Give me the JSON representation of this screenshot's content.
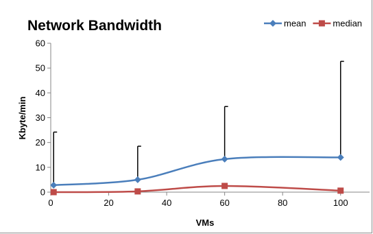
{
  "chart_data": {
    "type": "line",
    "title": "Network Bandwidth",
    "xlabel": "VMs",
    "ylabel": "Kbyte/min",
    "xlim": [
      0,
      110
    ],
    "ylim": [
      0,
      60
    ],
    "x_ticks": [
      0,
      20,
      40,
      60,
      80,
      100
    ],
    "y_ticks": [
      0,
      10,
      20,
      30,
      40,
      50,
      60
    ],
    "grid": false,
    "smooth": true,
    "legend_position": "top-right",
    "series": [
      {
        "name": "mean",
        "color": "#4a7ebb",
        "marker": "diamond",
        "points": [
          {
            "x": 1,
            "y": 2.8
          },
          {
            "x": 30,
            "y": 5.0
          },
          {
            "x": 60,
            "y": 13.3
          },
          {
            "x": 100,
            "y": 14.0
          }
        ],
        "error_upper": [
          24.2,
          18.5,
          34.5,
          52.7
        ]
      },
      {
        "name": "median",
        "color": "#be4b48",
        "marker": "square",
        "points": [
          {
            "x": 1,
            "y": 0.0
          },
          {
            "x": 30,
            "y": 0.3
          },
          {
            "x": 60,
            "y": 2.5
          },
          {
            "x": 100,
            "y": 0.6
          }
        ]
      }
    ]
  }
}
